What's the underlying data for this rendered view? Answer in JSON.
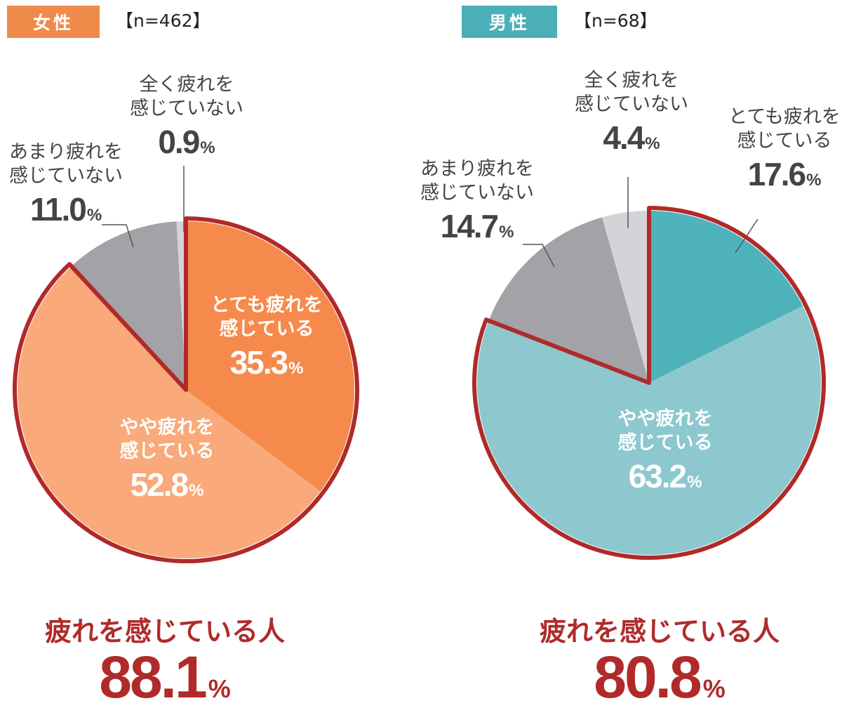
{
  "colors": {
    "women_dark": "#f58a4c",
    "women_light": "#f9a97a",
    "men_dark": "#4fb3bc",
    "men_light": "#8cc8cd",
    "gray_dark": "#a3a2a6",
    "gray_light": "#d4d3d7",
    "highlight_outline": "#b02a2a",
    "women_badge": "#f08a4b",
    "men_badge": "#4aafb6"
  },
  "chart_data": [
    {
      "type": "pie",
      "title": "女性",
      "subtitle": "【n=462】",
      "slices": [
        {
          "label": "とても疲れを感じている",
          "label_lines": [
            "とても疲れを",
            "感じている"
          ],
          "value": 35.3,
          "display": "35.3",
          "unit": "%"
        },
        {
          "label": "やや疲れを感じている",
          "label_lines": [
            "やや疲れを",
            "感じている"
          ],
          "value": 52.8,
          "display": "52.8",
          "unit": "%"
        },
        {
          "label": "あまり疲れを感じていない",
          "label_lines": [
            "あまり疲れを",
            "感じていない"
          ],
          "value": 11.0,
          "display": "11.0",
          "unit": "%"
        },
        {
          "label": "全く疲れを感じていない",
          "label_lines": [
            "全く疲れを",
            "感じていない"
          ],
          "value": 0.9,
          "display": "0.9",
          "unit": "%"
        }
      ],
      "summary": {
        "label": "疲れを感じている人",
        "value": 88.1,
        "display": "88.1",
        "unit": "%"
      }
    },
    {
      "type": "pie",
      "title": "男性",
      "subtitle": "【n=68】",
      "slices": [
        {
          "label": "とても疲れを感じている",
          "label_lines": [
            "とても疲れを",
            "感じている"
          ],
          "value": 17.6,
          "display": "17.6",
          "unit": "%"
        },
        {
          "label": "やや疲れを感じている",
          "label_lines": [
            "やや疲れを",
            "感じている"
          ],
          "value": 63.2,
          "display": "63.2",
          "unit": "%"
        },
        {
          "label": "あまり疲れを感じていない",
          "label_lines": [
            "あまり疲れを",
            "感じていない"
          ],
          "value": 14.7,
          "display": "14.7",
          "unit": "%"
        },
        {
          "label": "全く疲れを感じていない",
          "label_lines": [
            "全く疲れを",
            "感じていない"
          ],
          "value": 4.4,
          "display": "4.4",
          "unit": "%"
        }
      ],
      "summary": {
        "label": "疲れを感じている人",
        "value": 80.8,
        "display": "80.8",
        "unit": "%"
      }
    }
  ]
}
